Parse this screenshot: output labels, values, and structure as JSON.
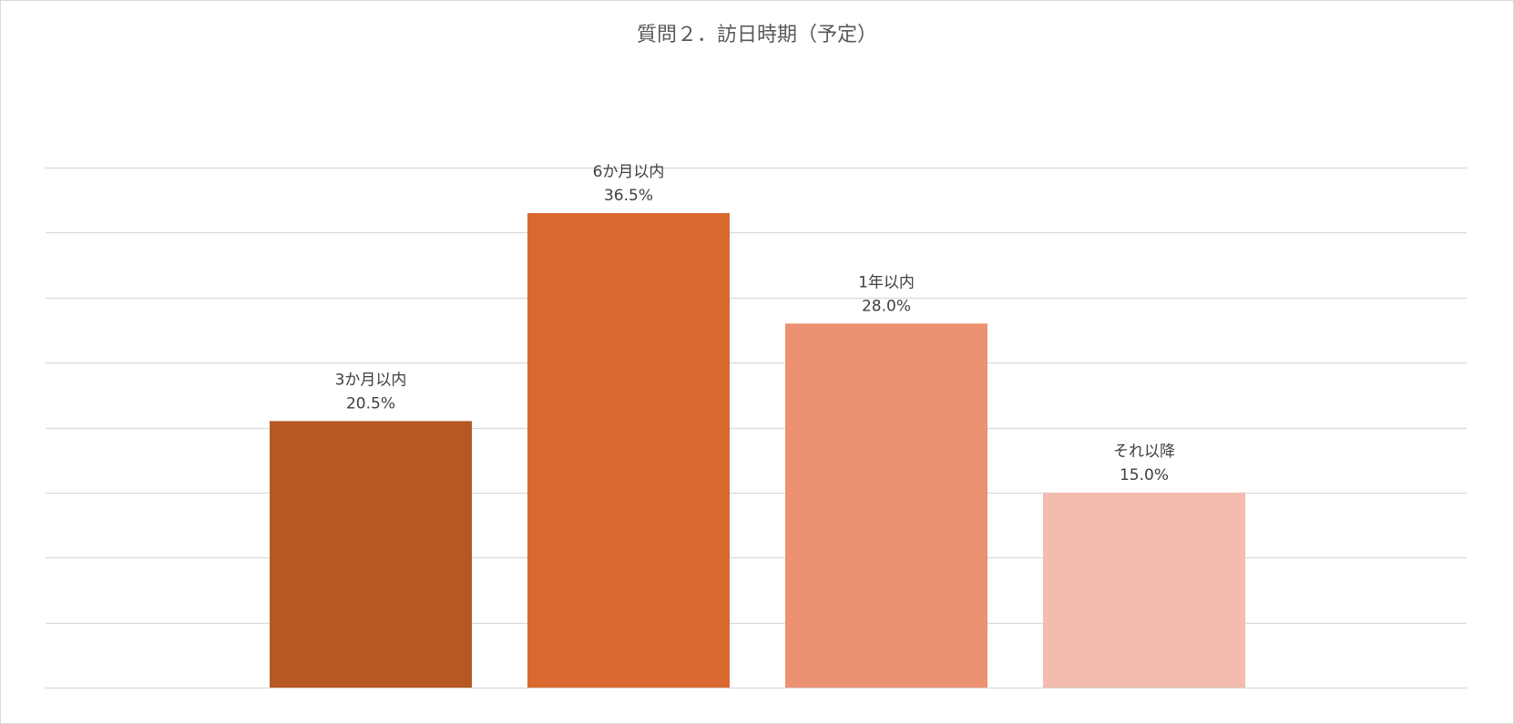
{
  "chart_data": {
    "type": "bar",
    "title": "質問２．訪日時期（予定）",
    "categories": [
      "3か月以内",
      "6か月以内",
      "1年以内",
      "それ以降"
    ],
    "values": [
      20.5,
      36.5,
      28.0,
      15.0
    ],
    "value_labels": [
      "20.5%",
      "36.5%",
      "28.0%",
      "15.0%"
    ],
    "colors": [
      "#B65724",
      "#D9692E",
      "#EC9172",
      "#F4BCAF"
    ],
    "unit": "%",
    "ylim": [
      0,
      40
    ],
    "y_gridlines": [
      0,
      5,
      10,
      15,
      20,
      25,
      30,
      35,
      40
    ],
    "grid": true,
    "gridline_color": "#d9d9d9",
    "y_tick_labels_visible": false,
    "legend": "none",
    "data_label_position": "above-bar"
  }
}
